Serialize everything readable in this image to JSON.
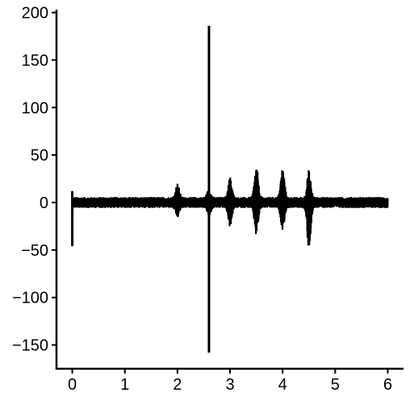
{
  "chart_data": {
    "type": "line",
    "title": "",
    "xlabel": "",
    "ylabel": "",
    "xlim": [
      -0.3,
      6.3
    ],
    "ylim": [
      -175,
      203
    ],
    "x_ticks": [
      0,
      1,
      2,
      3,
      4,
      5,
      6
    ],
    "x_tick_labels": [
      "0",
      "1",
      "2",
      "3",
      "4",
      "5",
      "6"
    ],
    "y_ticks": [
      -150,
      -100,
      -50,
      0,
      50,
      100,
      150,
      200
    ],
    "y_tick_labels": [
      "−150",
      "−100",
      "−50",
      "0",
      "50",
      "100",
      "150",
      "200"
    ],
    "grid": false,
    "legend": "none",
    "series": [
      {
        "color": "#000000",
        "baseline_noise_amplitude": 5,
        "x_range": [
          0,
          6
        ],
        "spikes": [
          {
            "x": 0.0,
            "min": -46,
            "max": 12
          },
          {
            "x": 2.6,
            "min": -158,
            "max": 186
          }
        ],
        "bursts": [
          {
            "x": 2.0,
            "min": -16,
            "max": 20
          },
          {
            "x": 2.6,
            "min": -14,
            "max": 14
          },
          {
            "x": 3.0,
            "min": -25,
            "max": 27
          },
          {
            "x": 3.5,
            "min": -35,
            "max": 39
          },
          {
            "x": 4.0,
            "min": -28,
            "max": 37
          },
          {
            "x": 4.5,
            "min": -49,
            "max": 34
          }
        ]
      }
    ]
  }
}
